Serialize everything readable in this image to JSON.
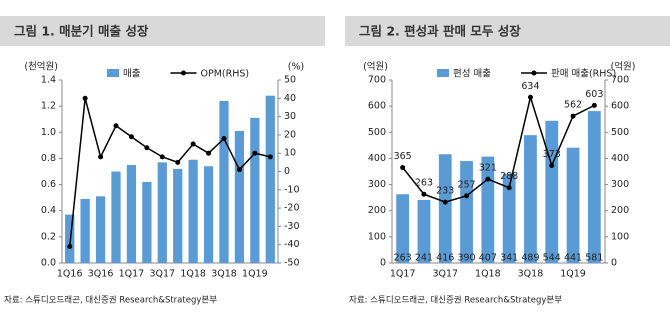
{
  "chart_data": [
    {
      "type": "combo",
      "title": "그림 1. 매분기 매출 성장",
      "source": "자료: 스튜디오드래곤, 대신증권 Research&Strategy본부",
      "y_label": "(천억원)",
      "y2_label": "(%)",
      "categories": [
        "1Q16",
        null,
        "3Q16",
        null,
        "1Q17",
        null,
        "3Q17",
        null,
        "1Q18",
        null,
        "3Q18",
        null,
        "1Q19",
        null
      ],
      "series": [
        {
          "name": "매출",
          "type": "bar",
          "color": "#5b9bd5",
          "values": [
            0.37,
            0.49,
            0.51,
            0.7,
            0.75,
            0.62,
            0.77,
            0.72,
            0.79,
            0.74,
            1.24,
            1.01,
            1.11,
            1.28
          ]
        },
        {
          "name": "OPM(RHS)",
          "type": "line",
          "axis": "y2",
          "color": "#000000",
          "values": [
            -41,
            40,
            8,
            25,
            19,
            13,
            8,
            5,
            15,
            10,
            18,
            1,
            10,
            8
          ]
        }
      ],
      "ylim": [
        0,
        1.4
      ],
      "yticks": [
        {
          "value": 0,
          "label": "0.0"
        },
        0.2,
        0.4,
        0.6,
        0.8,
        {
          "value": 1,
          "label": "1.0"
        },
        1.2,
        1.4
      ],
      "y2lim": [
        -50,
        50
      ],
      "y2ticks": [
        -50,
        -40,
        -30,
        -20,
        -10,
        0,
        10,
        20,
        30,
        40,
        50
      ],
      "data_labels": false
    },
    {
      "type": "combo",
      "title": "그림 2. 편성과 판매 모두 성장",
      "source": "자료: 스튜디오드래곤, 대신증권 Research&Strategy본부",
      "y_label": "(억원)",
      "y2_label": "(억원)",
      "categories": [
        "1Q17",
        null,
        "3Q17",
        null,
        "1Q18",
        null,
        "3Q18",
        null,
        "1Q19",
        null
      ],
      "series": [
        {
          "name": "편성 매출",
          "type": "bar",
          "color": "#5b9bd5",
          "values": [
            263,
            241,
            416,
            390,
            407,
            341,
            489,
            544,
            441,
            581
          ]
        },
        {
          "name": "판매 매출(RHS)",
          "type": "line",
          "axis": "y2",
          "color": "#000000",
          "values": [
            365,
            263,
            233,
            257,
            321,
            288,
            634,
            373,
            562,
            603
          ]
        }
      ],
      "ylim": [
        0,
        700
      ],
      "yticks": [
        0,
        100,
        200,
        300,
        400,
        500,
        600,
        700
      ],
      "y2lim": [
        0,
        700
      ],
      "y2ticks": [
        0,
        100,
        200,
        300,
        400,
        500,
        600,
        700
      ],
      "data_labels": true
    }
  ]
}
